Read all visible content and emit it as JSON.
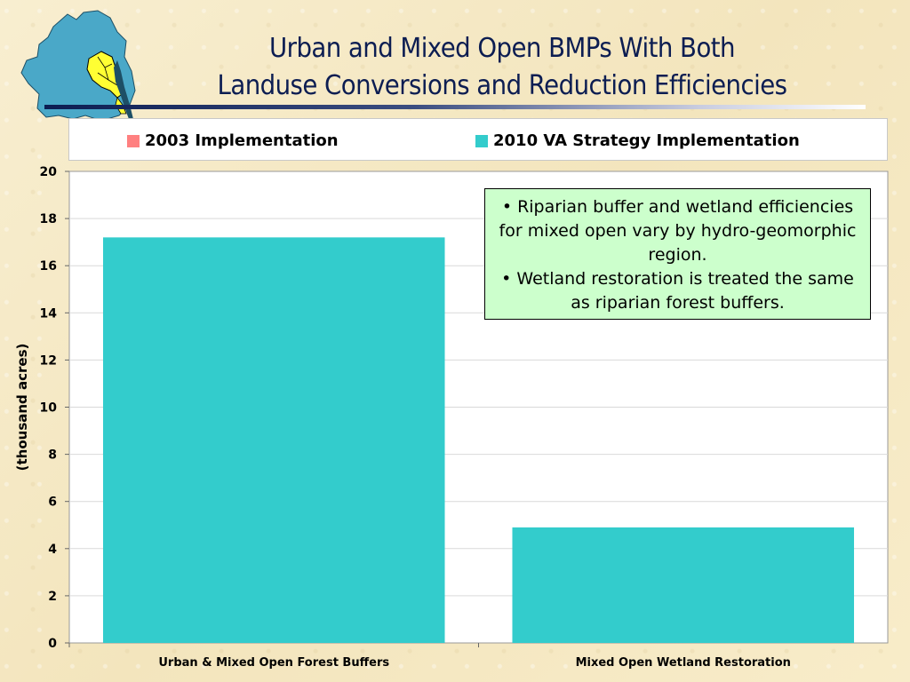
{
  "page": {
    "title_line1": "Urban and Mixed Open BMPs With Both",
    "title_line2": "Landuse Conversions and Reduction Efficiencies"
  },
  "callout": {
    "line1": "• Riparian buffer and wetland efficiencies for mixed open vary by hydro-geomorphic region.",
    "line2": "• Wetland restoration is treated the same as riparian forest buffers."
  },
  "colors": {
    "series_2003": "#ff8080",
    "series_2010": "#33cccc",
    "title": "#0c1d52",
    "callout_bg": "#ccffcc",
    "map_water": "#4aa8c8",
    "map_va": "#ffff33"
  },
  "chart_data": {
    "type": "bar",
    "categories": [
      "Urban & Mixed Open Forest Buffers",
      "Mixed Open Wetland Restoration"
    ],
    "series": [
      {
        "name": "2003 Implementation",
        "values": [
          0,
          0
        ]
      },
      {
        "name": "2010 VA Strategy Implementation",
        "values": [
          17.2,
          4.9
        ]
      }
    ],
    "ylabel": "(thousand acres)",
    "xlabel": "",
    "ylim": [
      0,
      20
    ],
    "yticks": [
      0,
      2,
      4,
      6,
      8,
      10,
      12,
      14,
      16,
      18,
      20
    ],
    "grid": true,
    "legend_position": "top"
  }
}
